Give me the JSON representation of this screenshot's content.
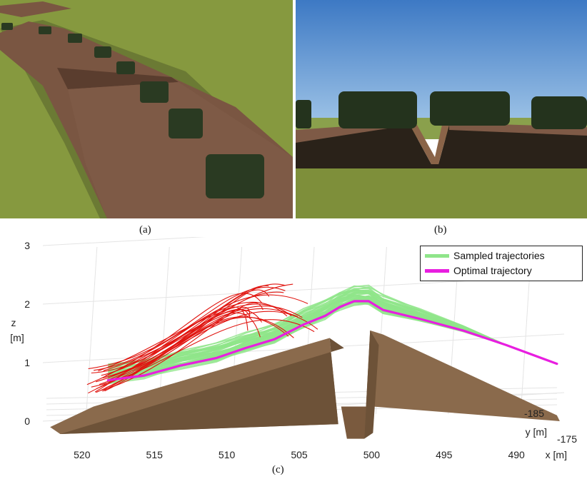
{
  "captions": {
    "a": "(a)",
    "b": "(b)",
    "c": "(c)"
  },
  "colors": {
    "sampled": "#8fe58a",
    "optimal": "#e81ee0",
    "unsafe": "#e0140f",
    "terrain": "#8a6a4c",
    "grass": "#7a8f3a",
    "sky": "#4c84c8"
  },
  "chart_data": {
    "type": "line",
    "dimensions": "3d",
    "zlabel": "z\n[m]",
    "ylabel": "y [m]",
    "xlabel": "x [m]",
    "x_ticks": [
      "520",
      "515",
      "510",
      "505",
      "500",
      "495",
      "490"
    ],
    "z_ticks": [
      "0",
      "1",
      "2",
      "3"
    ],
    "y_ticks": [
      "-185",
      "-175"
    ],
    "xlim": [
      523,
      487
    ],
    "zlim": [
      0,
      3
    ],
    "ylim": [
      -185,
      -175
    ],
    "grid": true,
    "legend": "top-right",
    "series": [
      {
        "name": "Sampled trajectories",
        "color": "#8fe58a"
      },
      {
        "name": "Optimal trajectory",
        "color": "#e81ee0",
        "x": [
          518.5,
          516,
          513.5,
          511,
          509,
          507,
          505,
          503.5,
          502.5,
          501.5,
          500.5,
          499.5,
          497,
          494,
          491,
          487.5
        ],
        "z": [
          0.7,
          0.78,
          0.95,
          1.08,
          1.25,
          1.4,
          1.65,
          1.8,
          1.95,
          2.05,
          2.05,
          1.9,
          1.75,
          1.55,
          1.3,
          0.98
        ]
      }
    ]
  }
}
